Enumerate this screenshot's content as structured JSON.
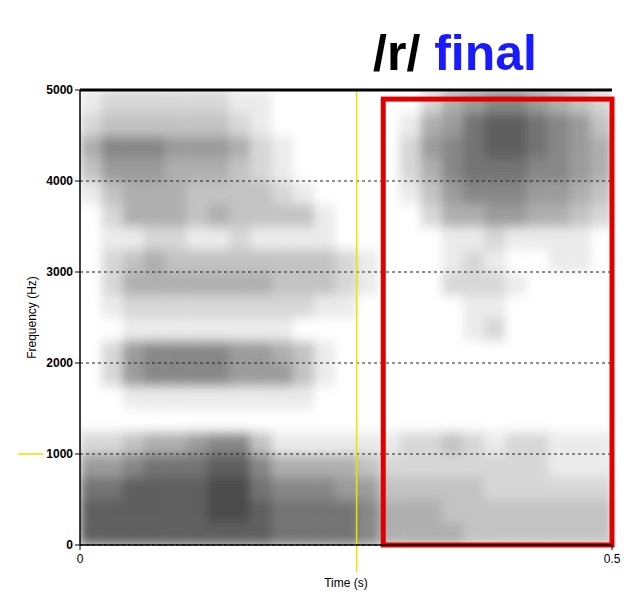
{
  "chart_data": {
    "type": "heatmap",
    "title_parts": [
      {
        "text": "/r/",
        "color": "#000000"
      },
      {
        "text": "final",
        "color": "#1a1aff"
      }
    ],
    "x_label": "Time (s)",
    "y_label": "Frequency (Hz)",
    "xlim": [
      0,
      0.5
    ],
    "xticks": [
      0,
      0.5
    ],
    "ylim": [
      0,
      5000
    ],
    "yticks": [
      0,
      1000,
      2000,
      3000,
      4000,
      5000
    ],
    "grid": true,
    "color": "#000000",
    "zlim": [
      0,
      10
    ],
    "x_bins": [
      0,
      0.02,
      0.04,
      0.06,
      0.08,
      0.1,
      0.12,
      0.14,
      0.16,
      0.18,
      0.2,
      0.22,
      0.24,
      0.26,
      0.28,
      0.3,
      0.32,
      0.34,
      0.36,
      0.38,
      0.4,
      0.42,
      0.44,
      0.46,
      0.48,
      0.5
    ],
    "y_bins": [
      0,
      250,
      500,
      750,
      1000,
      1250,
      1500,
      1750,
      2000,
      2250,
      2500,
      2750,
      3000,
      3250,
      3500,
      3750,
      4000,
      4250,
      4500,
      4750,
      5000
    ],
    "cells": [
      [
        8,
        8,
        8,
        8,
        8,
        8,
        8,
        8,
        8,
        7,
        7,
        7,
        7,
        6,
        4,
        4,
        4,
        4,
        3,
        3,
        3,
        3,
        3,
        3,
        3
      ],
      [
        8,
        8,
        8,
        8,
        8,
        8,
        9,
        9,
        8,
        7,
        7,
        7,
        7,
        6,
        4,
        4,
        4,
        3,
        3,
        3,
        3,
        3,
        3,
        3,
        3
      ],
      [
        7,
        7,
        8,
        8,
        8,
        8,
        9,
        9,
        7,
        6,
        6,
        6,
        5,
        5,
        3,
        3,
        3,
        3,
        3,
        2,
        2,
        2,
        2,
        2,
        2
      ],
      [
        5,
        5,
        6,
        7,
        7,
        7,
        8,
        8,
        6,
        4,
        4,
        4,
        4,
        3,
        2,
        2,
        2,
        2,
        2,
        2,
        2,
        2,
        1,
        1,
        1
      ],
      [
        2,
        2,
        3,
        4,
        4,
        5,
        6,
        6,
        3,
        1,
        1,
        1,
        1,
        1,
        1,
        2,
        2,
        3,
        2,
        1,
        2,
        2,
        1,
        1,
        1
      ],
      [
        0,
        0,
        0,
        0,
        0,
        0,
        0,
        0,
        0,
        0,
        0,
        0,
        0,
        0,
        0,
        0,
        0,
        0,
        0,
        0,
        0,
        0,
        0,
        0,
        0
      ],
      [
        0,
        0,
        1,
        1,
        1,
        1,
        1,
        1,
        1,
        1,
        1,
        0,
        0,
        0,
        0,
        0,
        0,
        0,
        0,
        0,
        0,
        0,
        0,
        0,
        0
      ],
      [
        0,
        2,
        5,
        6,
        6,
        6,
        6,
        5,
        5,
        5,
        3,
        1,
        0,
        0,
        0,
        0,
        0,
        0,
        0,
        0,
        0,
        0,
        0,
        0,
        0
      ],
      [
        0,
        2,
        5,
        6,
        6,
        6,
        6,
        5,
        5,
        4,
        3,
        1,
        0,
        0,
        0,
        0,
        0,
        0,
        0,
        0,
        0,
        0,
        0,
        0,
        0
      ],
      [
        0,
        0,
        1,
        1,
        1,
        1,
        1,
        1,
        1,
        1,
        0,
        0,
        0,
        0,
        0,
        0,
        0,
        0,
        1,
        2,
        0,
        0,
        0,
        0,
        0
      ],
      [
        0,
        1,
        2,
        2,
        2,
        2,
        2,
        2,
        2,
        2,
        2,
        1,
        1,
        0,
        0,
        0,
        0,
        0,
        1,
        1,
        0,
        0,
        0,
        0,
        0
      ],
      [
        0,
        2,
        4,
        4,
        4,
        4,
        4,
        4,
        4,
        3,
        3,
        3,
        2,
        1,
        0,
        0,
        0,
        2,
        2,
        2,
        1,
        0,
        0,
        0,
        0
      ],
      [
        0,
        2,
        3,
        4,
        3,
        3,
        3,
        3,
        3,
        3,
        3,
        3,
        2,
        1,
        0,
        0,
        0,
        1,
        2,
        1,
        0,
        0,
        1,
        1,
        0
      ],
      [
        0,
        1,
        1,
        2,
        2,
        1,
        1,
        2,
        1,
        1,
        1,
        1,
        0,
        0,
        0,
        0,
        0,
        1,
        1,
        2,
        1,
        1,
        1,
        1,
        0
      ],
      [
        0,
        2,
        4,
        4,
        4,
        3,
        4,
        3,
        3,
        3,
        3,
        1,
        0,
        0,
        0,
        0,
        2,
        4,
        4,
        5,
        5,
        4,
        4,
        3,
        2
      ],
      [
        1,
        3,
        4,
        4,
        4,
        3,
        3,
        3,
        3,
        2,
        1,
        0,
        0,
        0,
        0,
        1,
        3,
        5,
        6,
        6,
        6,
        5,
        5,
        4,
        3
      ],
      [
        3,
        5,
        5,
        5,
        4,
        4,
        4,
        3,
        2,
        1,
        0,
        0,
        0,
        0,
        0,
        2,
        4,
        6,
        7,
        7,
        7,
        6,
        6,
        5,
        4
      ],
      [
        4,
        6,
        6,
        6,
        5,
        5,
        5,
        4,
        2,
        1,
        0,
        0,
        0,
        0,
        0,
        2,
        5,
        6,
        7,
        8,
        8,
        7,
        6,
        5,
        4
      ],
      [
        2,
        3,
        3,
        3,
        3,
        3,
        3,
        2,
        1,
        0,
        0,
        0,
        0,
        0,
        0,
        1,
        4,
        5,
        7,
        8,
        8,
        7,
        6,
        5,
        3
      ],
      [
        1,
        2,
        2,
        2,
        2,
        2,
        2,
        1,
        1,
        0,
        0,
        0,
        0,
        0,
        0,
        0,
        2,
        4,
        5,
        6,
        6,
        5,
        4,
        3,
        2
      ]
    ],
    "cursor": {
      "x": 0.26,
      "y": 1000,
      "color": "#e6e600"
    },
    "highlight": {
      "x": [
        0.285,
        0.5
      ],
      "y": [
        0,
        4900
      ],
      "color": "#e00000"
    }
  }
}
